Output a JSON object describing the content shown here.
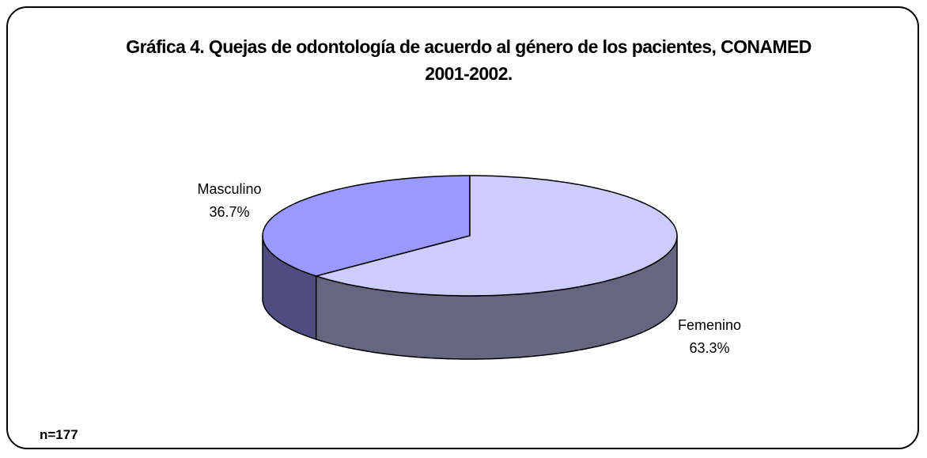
{
  "chart_data": {
    "type": "pie3d",
    "title": "Gráfica 4. Quejas de odontología de acuerdo al género de los pacientes, CONAMED 2001-2002.",
    "categories": [
      "Masculino",
      "Femenino"
    ],
    "values": [
      36.7,
      63.3
    ],
    "value_labels": [
      "36.7%",
      "63.3%"
    ],
    "colors": [
      "#9999ff",
      "#ccccff"
    ],
    "annotation": "n=177"
  }
}
